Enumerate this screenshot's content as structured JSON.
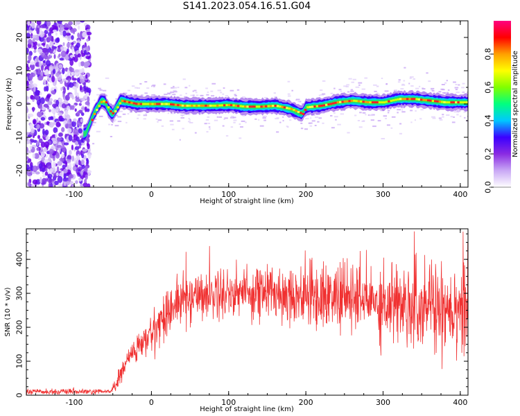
{
  "title": "S141.2023.054.16.51.G04",
  "chart_data": [
    {
      "type": "heatmap",
      "xlabel": "Height of straight line (km)",
      "ylabel": "Frequency (Hz)",
      "xlim": [
        -162,
        410
      ],
      "ylim": [
        -25,
        25
      ],
      "x_ticks": [
        -100,
        0,
        100,
        200,
        300,
        400
      ],
      "y_ticks": [
        -20,
        -10,
        0,
        10,
        20
      ],
      "colorbar": {
        "label": "Normalized spectral amplitude",
        "range": [
          0.0,
          1.0
        ],
        "ticks": [
          0.0,
          0.2,
          0.4,
          0.6,
          0.8
        ],
        "tick_labels": [
          "0.0",
          "0.2",
          "0.4",
          "0.6",
          "0.8"
        ],
        "colormap": [
          "#ffffff",
          "#c9a8f5",
          "#8a2be2",
          "#3b00ff",
          "#00c8ff",
          "#00ff80",
          "#80ff00",
          "#ffff00",
          "#ffa000",
          "#ff0000",
          "#ff0080"
        ]
      },
      "noise_region_x": [
        -162,
        -80
      ],
      "ridge": {
        "x": [
          -85,
          -80,
          -75,
          -70,
          -65,
          -60,
          -55,
          -50,
          -45,
          -40,
          -30,
          -20,
          0,
          20,
          40,
          60,
          80,
          100,
          120,
          140,
          160,
          180,
          190,
          195,
          200,
          220,
          240,
          260,
          280,
          300,
          320,
          340,
          360,
          380,
          400,
          410
        ],
        "y": [
          -9,
          -6,
          -3,
          -1,
          1,
          0.5,
          -2,
          -3,
          -1,
          1,
          0.5,
          0,
          0,
          0,
          -0.5,
          -0.5,
          -0.5,
          -0.3,
          -0.8,
          -0.8,
          -0.5,
          -1.5,
          -2.5,
          -3,
          -1,
          -0.5,
          0.5,
          1,
          0.5,
          0.5,
          1.5,
          1.5,
          1,
          0.5,
          0.5,
          0.5
        ]
      }
    },
    {
      "type": "line",
      "xlabel": "Height of straight line (km)",
      "ylabel": "SNR (10 * v/v)",
      "xlim": [
        -162,
        410
      ],
      "ylim": [
        0,
        490
      ],
      "x_ticks": [
        -100,
        0,
        100,
        200,
        300,
        400
      ],
      "y_ticks": [
        0,
        100,
        200,
        300,
        400
      ],
      "color": "#f03030",
      "series": [
        {
          "x": [
            -162,
            -140,
            -120,
            -100,
            -80,
            -60,
            -50,
            -45,
            -40,
            -35,
            -30,
            -20,
            -10,
            0,
            10,
            20,
            30,
            40,
            50,
            60,
            70,
            80,
            90,
            100,
            120,
            140,
            160,
            180,
            200,
            220,
            240,
            260,
            280,
            300,
            320,
            340,
            350,
            355,
            360,
            365,
            370,
            380,
            390,
            400,
            410
          ],
          "y": [
            10,
            10,
            10,
            10,
            10,
            10,
            15,
            35,
            60,
            85,
            110,
            135,
            155,
            180,
            215,
            245,
            265,
            280,
            290,
            295,
            298,
            300,
            302,
            303,
            305,
            305,
            302,
            300,
            295,
            292,
            290,
            285,
            280,
            275,
            272,
            270,
            268,
            275,
            270,
            265,
            268,
            265,
            268,
            265,
            262
          ]
        }
      ]
    }
  ]
}
